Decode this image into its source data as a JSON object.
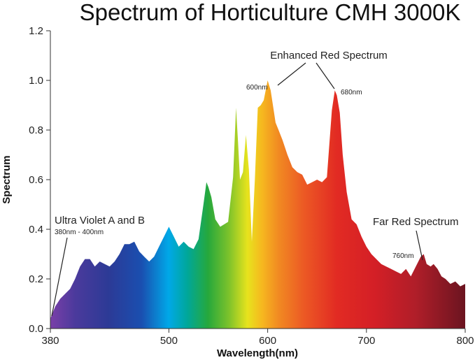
{
  "chart_data": {
    "type": "area",
    "title": "Spectrum of Horticulture CMH 3000K",
    "xlabel": "Wavelength(nm)",
    "ylabel": "Spectrum",
    "xlim": [
      380,
      800
    ],
    "ylim": [
      0,
      1.2
    ],
    "x_ticks": [
      "380",
      "500",
      "600",
      "700",
      "800"
    ],
    "y_ticks": [
      "0.0",
      "0.2",
      "0.4",
      "0.6",
      "0.8",
      "1.0",
      "1.2"
    ],
    "grid": false,
    "fill": "visible-spectrum gradient (violet to dark red)",
    "series": [
      {
        "x": [
          380,
          382,
          385,
          390,
          395,
          400,
          405,
          410,
          415,
          420,
          425,
          430,
          435,
          440,
          445,
          450,
          455,
          460,
          465,
          470,
          475,
          480,
          485,
          490,
          495,
          500,
          505,
          510,
          515,
          520,
          525,
          530,
          535,
          538,
          540,
          543,
          547,
          552,
          556,
          560,
          565,
          568,
          570,
          572,
          575,
          578,
          581,
          584,
          587,
          590,
          593,
          596,
          600,
          603,
          608,
          611,
          615,
          620,
          625,
          630,
          635,
          640,
          645,
          650,
          655,
          660,
          665,
          668,
          670,
          673,
          676,
          680,
          685,
          690,
          695,
          700,
          705,
          710,
          715,
          720,
          725,
          730,
          735,
          740,
          745,
          750,
          755,
          758,
          761,
          765,
          768,
          772,
          776,
          780,
          785,
          790,
          795,
          800
        ],
        "values": [
          0.04,
          0.06,
          0.09,
          0.12,
          0.14,
          0.16,
          0.2,
          0.25,
          0.28,
          0.28,
          0.25,
          0.27,
          0.26,
          0.25,
          0.27,
          0.3,
          0.34,
          0.34,
          0.35,
          0.31,
          0.29,
          0.27,
          0.29,
          0.33,
          0.37,
          0.41,
          0.37,
          0.33,
          0.35,
          0.33,
          0.32,
          0.36,
          0.5,
          0.59,
          0.57,
          0.53,
          0.44,
          0.41,
          0.42,
          0.43,
          0.61,
          0.89,
          0.75,
          0.6,
          0.63,
          0.78,
          0.64,
          0.35,
          0.6,
          0.89,
          0.9,
          0.92,
          1.0,
          0.96,
          0.83,
          0.8,
          0.76,
          0.7,
          0.65,
          0.63,
          0.62,
          0.58,
          0.59,
          0.6,
          0.59,
          0.61,
          0.88,
          0.96,
          0.94,
          0.87,
          0.7,
          0.55,
          0.44,
          0.42,
          0.37,
          0.33,
          0.3,
          0.28,
          0.26,
          0.25,
          0.24,
          0.23,
          0.22,
          0.24,
          0.21,
          0.25,
          0.29,
          0.3,
          0.26,
          0.25,
          0.26,
          0.24,
          0.21,
          0.2,
          0.18,
          0.19,
          0.17,
          0.18
        ]
      }
    ],
    "annotations": [
      {
        "id": "enhanced-red",
        "text": "Enhanced Red Spectrum"
      },
      {
        "id": "600nm",
        "text": "600nm"
      },
      {
        "id": "680nm",
        "text": "680nm"
      },
      {
        "id": "uv-ab",
        "text": "Ultra Violet A and B"
      },
      {
        "id": "uv-range",
        "text": "380nm - 400nm"
      },
      {
        "id": "far-red",
        "text": "Far Red Spectrum"
      },
      {
        "id": "760nm",
        "text": "760nm"
      }
    ]
  }
}
